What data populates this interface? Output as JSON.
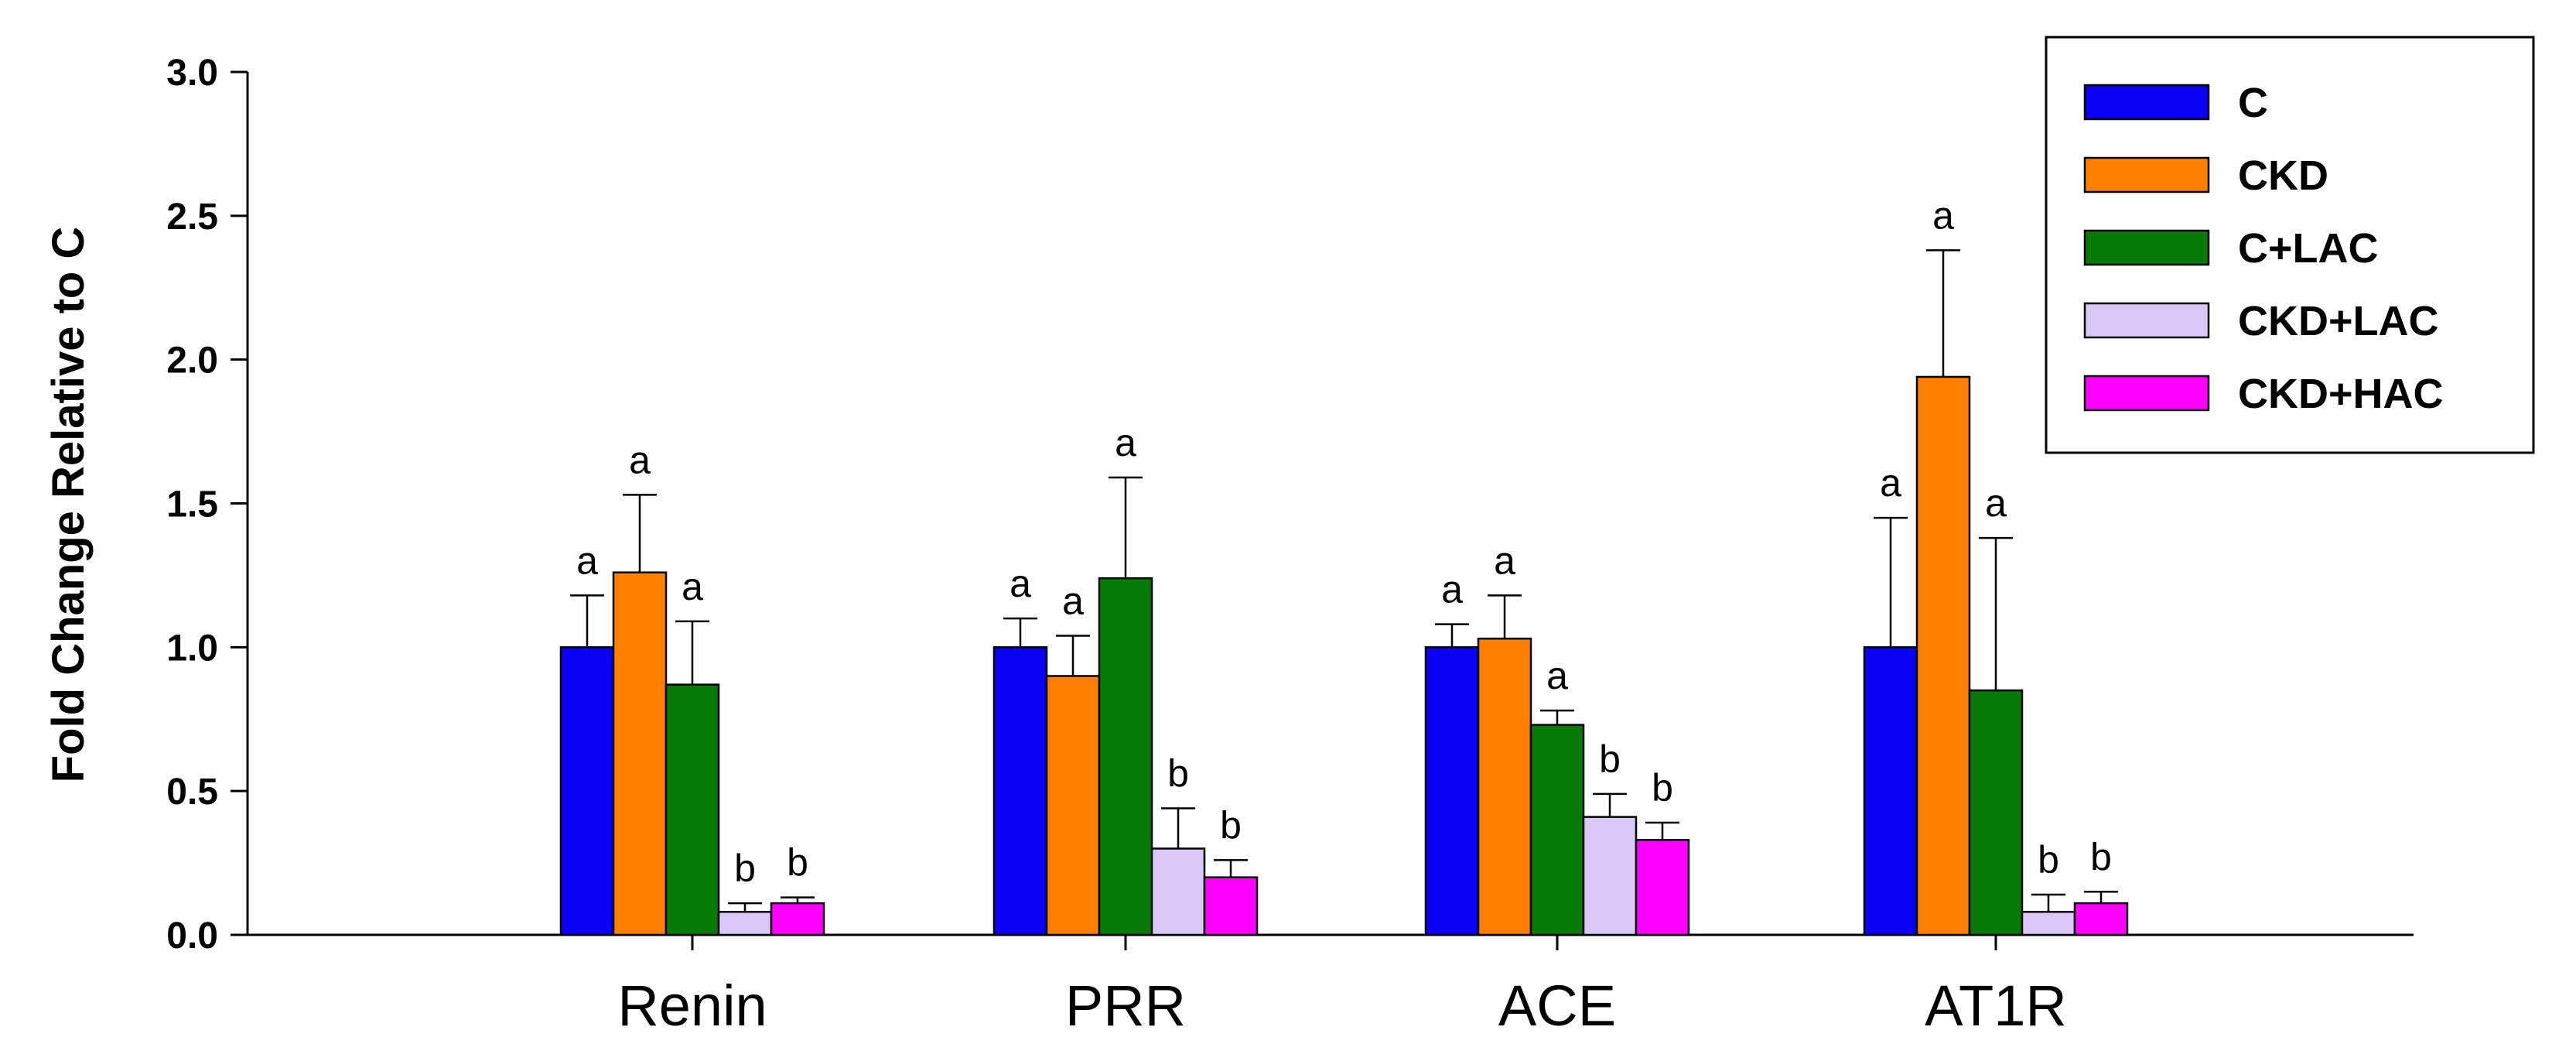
{
  "chart_data": {
    "type": "bar",
    "title": "",
    "xlabel": "",
    "ylabel": "Fold Change Relative to C",
    "ylim": [
      0,
      3.0
    ],
    "yticks": [
      "0.0",
      "0.5",
      "1.0",
      "1.5",
      "2.0",
      "2.5",
      "3.0"
    ],
    "categories": [
      "Renin",
      "PRR",
      "ACE",
      "AT1R"
    ],
    "legend_position": "top-right",
    "series": [
      {
        "name": "C",
        "color": "#0a00f5",
        "values": [
          1.0,
          1.0,
          1.0,
          1.0
        ],
        "errors": [
          0.18,
          0.1,
          0.08,
          0.45
        ],
        "labels": [
          "a",
          "a",
          "a",
          "a"
        ]
      },
      {
        "name": "CKD",
        "color": "#ff7f00",
        "values": [
          1.26,
          0.9,
          1.03,
          1.94
        ],
        "errors": [
          0.27,
          0.14,
          0.15,
          0.44
        ],
        "labels": [
          "a",
          "a",
          "a",
          "a"
        ]
      },
      {
        "name": "C+LAC",
        "color": "#087a08",
        "values": [
          0.87,
          1.24,
          0.73,
          0.85
        ],
        "errors": [
          0.22,
          0.35,
          0.05,
          0.53
        ],
        "labels": [
          "a",
          "a",
          "a",
          "a"
        ]
      },
      {
        "name": "CKD+LAC",
        "color": "#dcc8f8",
        "values": [
          0.08,
          0.3,
          0.41,
          0.08
        ],
        "errors": [
          0.03,
          0.14,
          0.08,
          0.06
        ],
        "labels": [
          "b",
          "b",
          "b",
          "b"
        ]
      },
      {
        "name": "CKD+HAC",
        "color": "#ff00ff",
        "values": [
          0.11,
          0.2,
          0.33,
          0.11
        ],
        "errors": [
          0.02,
          0.06,
          0.06,
          0.04
        ],
        "labels": [
          "b",
          "b",
          "b",
          "b"
        ]
      }
    ]
  }
}
